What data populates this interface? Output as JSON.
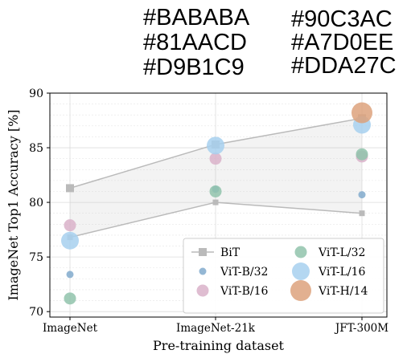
{
  "color_captions": {
    "left": [
      "#BABABA",
      "#81AACD",
      "#D9B1C9"
    ],
    "right": [
      "#90C3AC",
      "#A7D0EE",
      "#DDA27C"
    ]
  },
  "chart_data": {
    "type": "scatter",
    "xlabel": "Pre-training dataset",
    "ylabel": "ImageNet Top1 Accuracy [%]",
    "categories": [
      "ImageNet",
      "ImageNet-21k",
      "JFT-300M"
    ],
    "ylim": [
      69.5,
      90
    ],
    "yticks": [
      70,
      75,
      80,
      85,
      90
    ],
    "grid": true,
    "legend_position": "lower-right",
    "bit_band": {
      "upper": [
        81.3,
        85.3,
        87.7
      ],
      "lower": [
        76.8,
        80.0,
        79.0
      ],
      "color": "#BABABA"
    },
    "series": [
      {
        "name": "BiT",
        "marker": "square",
        "color": "#BABABA",
        "values": [
          81.3,
          85.3,
          87.7
        ]
      },
      {
        "name": "ViT-B/32",
        "marker": "circle",
        "size": "small",
        "color": "#81AACD",
        "values": [
          73.4,
          81.2,
          80.7
        ]
      },
      {
        "name": "ViT-B/16",
        "marker": "circle",
        "size": "medium",
        "color": "#D9B1C9",
        "values": [
          77.9,
          84.0,
          84.2
        ]
      },
      {
        "name": "ViT-L/32",
        "marker": "circle",
        "size": "medium",
        "color": "#90C3AC",
        "values": [
          71.2,
          81.0,
          84.4
        ]
      },
      {
        "name": "ViT-L/16",
        "marker": "circle",
        "size": "large",
        "color": "#A7D0EE",
        "values": [
          76.5,
          85.2,
          87.1
        ]
      },
      {
        "name": "ViT-H/14",
        "marker": "circle",
        "size": "xlarge",
        "color": "#DDA27C",
        "values": [
          null,
          null,
          88.2
        ]
      }
    ]
  }
}
